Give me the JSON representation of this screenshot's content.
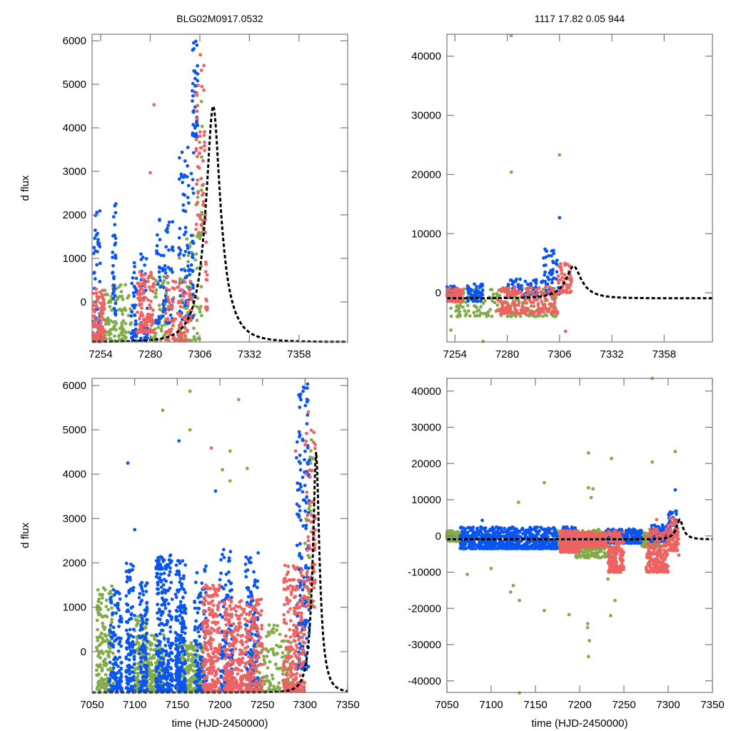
{
  "titles": {
    "left": "BLG02M0917.0532",
    "right": "1117  17.82  0.05  944"
  },
  "colors": {
    "blue": "#0a55f0",
    "green": "#82ab4a",
    "red": "#ee6262",
    "model": "#000000"
  },
  "chart_data": [
    {
      "id": "top-left",
      "type": "scatter",
      "title": "BLG02M0917.0532",
      "xlabel": "",
      "ylabel": "d flux",
      "xlim": [
        7249.5,
        7383.5
      ],
      "ylim": [
        -920,
        6150
      ],
      "xticks": [
        7254,
        7280,
        7306,
        7332,
        7358
      ],
      "yticks": [
        0,
        1000,
        2000,
        3000,
        4000,
        5000,
        6000
      ],
      "grid": false,
      "legend": "none",
      "model": {
        "type": "paczynski",
        "t0": 7313,
        "peak": 4500,
        "base": -920,
        "tE": 11,
        "u0": 0.33,
        "style": "dashed"
      },
      "series": [
        {
          "name": "blue",
          "description": "dense scatter up to ~6100 rising near 7300-7306; vertical streaks up to ~2300 at 7250-7295",
          "clusters": [
            [
              7250,
              7254,
              -900,
              2100,
              50
            ],
            [
              7260,
              7262,
              -300,
              2400,
              35
            ],
            [
              7270,
              7273,
              -900,
              1000,
              40
            ],
            [
              7275,
              7279,
              -900,
              1400,
              40
            ],
            [
              7283,
              7292,
              -500,
              2000,
              70
            ],
            [
              7295,
              7303,
              -400,
              3800,
              90
            ],
            [
              7302,
              7305,
              3800,
              6100,
              40
            ]
          ]
        },
        {
          "name": "green",
          "description": "scatter -900 to ~1000 across 7254-7305; a few up to 4800",
          "clusters": [
            [
              7255,
              7270,
              -900,
              400,
              100
            ],
            [
              7280,
              7290,
              -900,
              600,
              60
            ],
            [
              7295,
              7307,
              -900,
              1600,
              60
            ],
            [
              7304,
              7308,
              1500,
              5000,
              25
            ]
          ]
        },
        {
          "name": "red",
          "description": "dense clumps near -900..300 at 7250-7256 and 7275-7285; rising branch up to ~5700 near 7306",
          "clusters": [
            [
              7250,
              7256,
              -900,
              300,
              120
            ],
            [
              7273,
              7282,
              -700,
              700,
              120
            ],
            [
              7288,
              7302,
              -900,
              600,
              100
            ],
            [
              7304,
              7309,
              1500,
              5700,
              50
            ],
            [
              7309,
              7310,
              -200,
              2200,
              15
            ]
          ]
        }
      ],
      "outliers": [
        {
          "series": "red",
          "x": 7282,
          "y": 4530
        },
        {
          "series": "red",
          "x": 7280,
          "y": 2970
        }
      ]
    },
    {
      "id": "top-right",
      "type": "scatter",
      "title": "1117  17.82  0.05  944",
      "xlabel": "",
      "ylabel": "",
      "xlim": [
        7250,
        7382
      ],
      "ylim": [
        -8300,
        43700
      ],
      "xticks": [
        7254,
        7280,
        7306,
        7332,
        7358
      ],
      "yticks": [
        0,
        10000,
        20000,
        30000,
        40000
      ],
      "grid": false,
      "legend": "none",
      "model": {
        "type": "paczynski",
        "t0": 7313,
        "peak": 4500,
        "base": -920,
        "tE": 11,
        "u0": 0.33,
        "style": "dashed"
      },
      "series": [
        {
          "name": "blue",
          "clusters": [
            [
              7250,
              7254,
              -800,
              1500,
              40
            ],
            [
              7260,
              7268,
              -1500,
              1600,
              50
            ],
            [
              7280,
              7295,
              -500,
              2500,
              60
            ],
            [
              7297,
              7306,
              -200,
              7500,
              60
            ]
          ]
        },
        {
          "name": "green",
          "clusters": [
            [
              7252,
              7305,
              -4000,
              800,
              200
            ]
          ]
        },
        {
          "name": "red",
          "clusters": [
            [
              7250,
              7258,
              -1500,
              800,
              100
            ],
            [
              7275,
              7305,
              -3500,
              1000,
              200
            ],
            [
              7305,
              7312,
              0,
              5000,
              50
            ]
          ]
        }
      ],
      "outliers": [
        {
          "series": "green",
          "x": 7282,
          "y": 43500
        },
        {
          "series": "green",
          "x": 7306,
          "y": 23300
        },
        {
          "series": "green",
          "x": 7282,
          "y": 20400
        },
        {
          "series": "blue",
          "x": 7306,
          "y": 12700
        },
        {
          "series": "green",
          "x": 7252,
          "y": -6300
        },
        {
          "series": "green",
          "x": 7268,
          "y": -8200
        },
        {
          "series": "red",
          "x": 7309,
          "y": -6500
        }
      ]
    },
    {
      "id": "bottom-left",
      "type": "scatter",
      "title": "",
      "xlabel": "time (HJD-2450000)",
      "ylabel": "d flux",
      "xlim": [
        7050,
        7350
      ],
      "ylim": [
        -920,
        6160
      ],
      "xticks": [
        7050,
        7100,
        7150,
        7200,
        7250,
        7300,
        7350
      ],
      "yticks": [
        0,
        1000,
        2000,
        3000,
        4000,
        5000,
        6000
      ],
      "grid": false,
      "legend": "none",
      "model": {
        "type": "paczynski",
        "t0": 7313,
        "peak": 4500,
        "base": -920,
        "tE": 11,
        "u0": 0.33,
        "style": "dashed"
      },
      "series": [
        {
          "name": "blue",
          "clusters": [
            [
              7070,
              7085,
              -900,
              1400,
              120
            ],
            [
              7090,
              7100,
              -900,
              2000,
              120
            ],
            [
              7105,
              7115,
              -900,
              1600,
              100
            ],
            [
              7125,
              7145,
              -900,
              2200,
              250
            ],
            [
              7148,
              7160,
              -900,
              2100,
              200
            ],
            [
              7170,
              7185,
              -900,
              2000,
              120
            ],
            [
              7200,
              7215,
              -900,
              2300,
              120
            ],
            [
              7230,
              7245,
              -900,
              2300,
              120
            ],
            [
              7290,
              7305,
              -400,
              6100,
              160
            ]
          ]
        },
        {
          "name": "green",
          "clusters": [
            [
              7055,
              7075,
              -900,
              1500,
              160
            ],
            [
              7100,
              7115,
              -900,
              800,
              140
            ],
            [
              7115,
              7135,
              -900,
              400,
              140
            ],
            [
              7150,
              7180,
              -900,
              200,
              220
            ],
            [
              7240,
              7285,
              -900,
              600,
              140
            ],
            [
              7300,
              7310,
              1000,
              5000,
              40
            ]
          ]
        },
        {
          "name": "red",
          "clusters": [
            [
              7180,
              7200,
              -900,
              1500,
              220
            ],
            [
              7205,
              7225,
              -900,
              1200,
              200
            ],
            [
              7225,
              7250,
              -900,
              1200,
              180
            ],
            [
              7275,
              7300,
              -900,
              2000,
              220
            ],
            [
              7300,
              7312,
              1000,
              5700,
              60
            ],
            [
              7310,
              7312,
              1500,
              3000,
              12
            ]
          ]
        }
      ],
      "outliers": [
        {
          "series": "blue",
          "x": 7092,
          "y": 4250
        },
        {
          "series": "blue",
          "x": 7152,
          "y": 4750
        },
        {
          "series": "green",
          "x": 7165,
          "y": 5870
        },
        {
          "series": "green",
          "x": 7165,
          "y": 5000
        },
        {
          "series": "green",
          "x": 7222,
          "y": 5680
        },
        {
          "series": "green",
          "x": 7133,
          "y": 5440
        },
        {
          "series": "red",
          "x": 7190,
          "y": 4590
        },
        {
          "series": "green",
          "x": 7212,
          "y": 4520
        },
        {
          "series": "green",
          "x": 7203,
          "y": 4100
        },
        {
          "series": "green",
          "x": 7212,
          "y": 3850
        },
        {
          "series": "green",
          "x": 7232,
          "y": 4130
        },
        {
          "series": "blue",
          "x": 7195,
          "y": 3620
        },
        {
          "series": "red",
          "x": 7289,
          "y": 4520
        },
        {
          "series": "blue",
          "x": 7100,
          "y": 2750
        },
        {
          "series": "green",
          "x": 7300,
          "y": 2440
        }
      ]
    },
    {
      "id": "bottom-right",
      "type": "scatter",
      "title": "",
      "xlabel": "time (HJD-2450000)",
      "ylabel": "",
      "xlim": [
        7050,
        7350
      ],
      "ylim": [
        -43200,
        43500
      ],
      "xticks": [
        7050,
        7100,
        7150,
        7200,
        7250,
        7300,
        7350
      ],
      "yticks": [
        -40000,
        -30000,
        -20000,
        -10000,
        0,
        10000,
        20000,
        30000,
        40000
      ],
      "grid": false,
      "legend": "none",
      "model": {
        "type": "paczynski",
        "t0": 7313,
        "peak": 4500,
        "base": -920,
        "tE": 11,
        "u0": 0.33,
        "style": "dashed"
      },
      "series": [
        {
          "name": "blue",
          "clusters": [
            [
              7065,
              7175,
              -3500,
              2500,
              700
            ],
            [
              7180,
              7195,
              -3000,
              2500,
              120
            ],
            [
              7230,
              7270,
              -2000,
              2000,
              180
            ],
            [
              7280,
              7300,
              -1500,
              3000,
              120
            ],
            [
              7300,
              7310,
              0,
              7000,
              50
            ]
          ]
        },
        {
          "name": "green",
          "clusters": [
            [
              7050,
              7070,
              -1500,
              1500,
              140
            ],
            [
              7170,
              7180,
              -3500,
              1500,
              140
            ],
            [
              7195,
              7240,
              -6000,
              2000,
              200
            ],
            [
              7270,
              7290,
              -3000,
              1000,
              120
            ]
          ]
        },
        {
          "name": "red",
          "clusters": [
            [
              7178,
              7200,
              -4500,
              1500,
              260
            ],
            [
              7200,
              7230,
              -3000,
              1000,
              240
            ],
            [
              7232,
              7250,
              -10000,
              1500,
              200
            ],
            [
              7275,
              7300,
              -10000,
              2000,
              220
            ],
            [
              7300,
              7312,
              -4000,
              5000,
              80
            ]
          ]
        }
      ],
      "outliers": [
        {
          "series": "green",
          "x": 7282,
          "y": 43500
        },
        {
          "series": "green",
          "x": 7132,
          "y": -43300
        },
        {
          "series": "green",
          "x": 7210,
          "y": -33300
        },
        {
          "series": "green",
          "x": 7211,
          "y": -28900
        },
        {
          "series": "green",
          "x": 7209,
          "y": -25300
        },
        {
          "series": "green",
          "x": 7209,
          "y": -24200
        },
        {
          "series": "green",
          "x": 7235,
          "y": -22000
        },
        {
          "series": "green",
          "x": 7188,
          "y": -21700
        },
        {
          "series": "green",
          "x": 7160,
          "y": -20600
        },
        {
          "series": "green",
          "x": 7132,
          "y": -17800
        },
        {
          "series": "green",
          "x": 7125,
          "y": -13700
        },
        {
          "series": "green",
          "x": 7122,
          "y": -15500
        },
        {
          "series": "green",
          "x": 7240,
          "y": -17800
        },
        {
          "series": "green",
          "x": 7073,
          "y": -10600
        },
        {
          "series": "green",
          "x": 7100,
          "y": -9000
        },
        {
          "series": "green",
          "x": 7232,
          "y": -11900
        },
        {
          "series": "green",
          "x": 7210,
          "y": 22900
        },
        {
          "series": "green",
          "x": 7236,
          "y": 21400
        },
        {
          "series": "green",
          "x": 7308,
          "y": 23300
        },
        {
          "series": "green",
          "x": 7282,
          "y": 20400
        },
        {
          "series": "green",
          "x": 7160,
          "y": 14700
        },
        {
          "series": "green",
          "x": 7210,
          "y": 13300
        },
        {
          "series": "green",
          "x": 7215,
          "y": 13000
        },
        {
          "series": "green",
          "x": 7213,
          "y": 10600
        },
        {
          "series": "green",
          "x": 7131,
          "y": 9300
        },
        {
          "series": "blue",
          "x": 7308,
          "y": 12700
        },
        {
          "series": "blue",
          "x": 7090,
          "y": 4300
        },
        {
          "series": "red",
          "x": 7287,
          "y": 4500
        },
        {
          "series": "red",
          "x": 7312,
          "y": -5300
        }
      ]
    }
  ]
}
